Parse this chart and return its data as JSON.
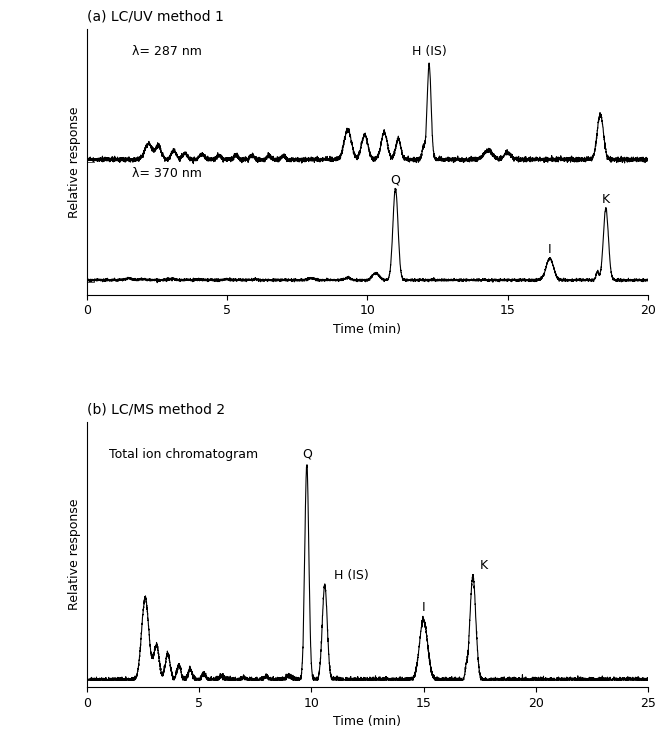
{
  "panel_a_title": "(a) LC/UV method 1",
  "panel_b_title": "(b) LC/MS method 2",
  "panel_a_xlabel": "Time (min)",
  "panel_b_xlabel": "Time (min)",
  "ylabel": "Relative response",
  "panel_a_xlim": [
    0,
    20
  ],
  "panel_b_xlim": [
    0,
    25
  ],
  "panel_a_xticks": [
    0,
    5,
    10,
    15,
    20
  ],
  "panel_b_xticks": [
    0,
    5,
    10,
    15,
    20,
    25
  ],
  "trace287_label": "λ= 287 nm",
  "trace370_label": "λ= 370 nm",
  "tic_label": "Total ion chromatogram",
  "line_color": "#000000",
  "background_color": "#ffffff",
  "annotation_color": "#000000",
  "label_fontsize": 9,
  "tick_fontsize": 9,
  "title_fontsize": 10,
  "annotation_fontsize": 9
}
